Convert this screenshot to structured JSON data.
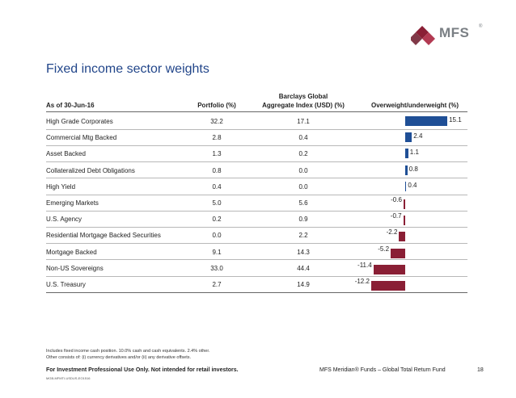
{
  "brand": {
    "name": "MFS",
    "registered": "®",
    "color_gray": "#7a7f84",
    "color_red": "#8a1f35"
  },
  "title": "Fixed income sector weights",
  "headers": {
    "sector": "As of 30-Jun-16",
    "portfolio": "Portfolio (%)",
    "index_line1": "Barclays Global",
    "index_line2": "Aggregate Index (USD) (%)",
    "overweight": "Overweight/underweight (%)"
  },
  "rows": [
    {
      "sector": "High Grade Corporates",
      "portfolio": "32.2",
      "index": "17.1",
      "diff": 15.1,
      "diff_label": "15.1"
    },
    {
      "sector": "Commercial Mtg Backed",
      "portfolio": "2.8",
      "index": "0.4",
      "diff": 2.4,
      "diff_label": "2.4"
    },
    {
      "sector": "Asset Backed",
      "portfolio": "1.3",
      "index": "0.2",
      "diff": 1.1,
      "diff_label": "1.1"
    },
    {
      "sector": "Collateralized Debt Obligations",
      "portfolio": "0.8",
      "index": "0.0",
      "diff": 0.8,
      "diff_label": "0.8"
    },
    {
      "sector": "High Yield",
      "portfolio": "0.4",
      "index": "0.0",
      "diff": 0.4,
      "diff_label": "0.4"
    },
    {
      "sector": "Emerging Markets",
      "portfolio": "5.0",
      "index": "5.6",
      "diff": -0.6,
      "diff_label": "-0.6"
    },
    {
      "sector": "U.S. Agency",
      "portfolio": "0.2",
      "index": "0.9",
      "diff": -0.7,
      "diff_label": "-0.7"
    },
    {
      "sector": "Residential Mortgage Backed Securities",
      "portfolio": "0.0",
      "index": "2.2",
      "diff": -2.2,
      "diff_label": "-2.2"
    },
    {
      "sector": "Mortgage Backed",
      "portfolio": "9.1",
      "index": "14.3",
      "diff": -5.2,
      "diff_label": "-5.2"
    },
    {
      "sector": "Non-US Sovereigns",
      "portfolio": "33.0",
      "index": "44.4",
      "diff": -11.4,
      "diff_label": "-11.4"
    },
    {
      "sector": "U.S. Treasury",
      "portfolio": "2.7",
      "index": "14.9",
      "diff": -12.2,
      "diff_label": "-12.2"
    }
  ],
  "bar_colors": {
    "positive": "#1f4f96",
    "negative": "#8a1f35"
  },
  "footnote_line1": "Includes fixed income cash position. 10.0% cash and cash equivalents. 2.4% other.",
  "footnote_line2": "Other consists of: (i) currency derivatives and/or (ii) any derivative offsets.",
  "footer_left": "For Investment Professional Use Only. Not intended for retail investors.",
  "footer_code": "MGB-MFMTI-USDUS-EO1516",
  "footer_right": "MFS Meridian® Funds – Global Total Return Fund",
  "page_number": "18"
}
